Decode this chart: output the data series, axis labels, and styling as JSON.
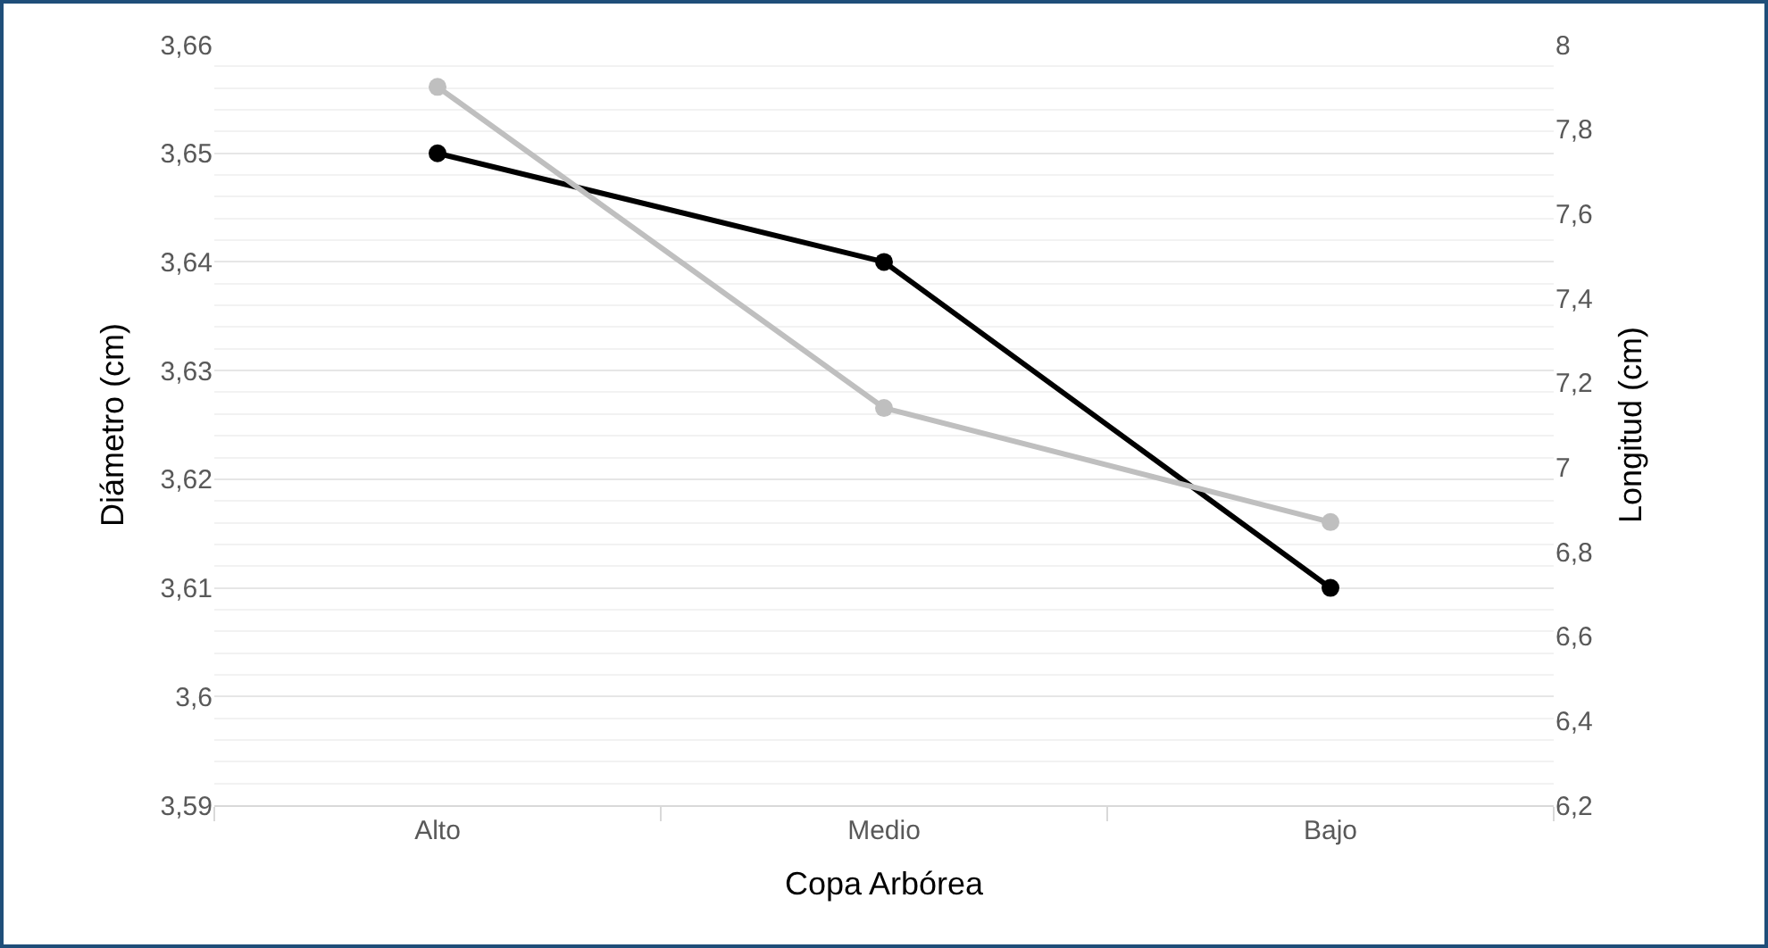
{
  "chart_data": {
    "type": "line",
    "xlabel": "Copa Arbórea",
    "ylabel": "Diámetro (cm)",
    "y2label": "Longitud (cm)",
    "categories": [
      "Alto",
      "Medio",
      "Bajo"
    ],
    "series": [
      {
        "color": "#000000",
        "values": [
          3.65,
          3.64,
          3.61
        ]
      },
      {
        "color": "#bfbfbf",
        "values": [
          7.9,
          7.14,
          6.87
        ],
        "axis": "y2"
      }
    ],
    "ylim": [
      3.59,
      3.66
    ],
    "yticks": [
      {
        "value": 3.59,
        "label": "3,59"
      },
      {
        "value": 3.6,
        "label": "3,6"
      },
      {
        "value": 3.61,
        "label": "3,61"
      },
      {
        "value": 3.62,
        "label": "3,62"
      },
      {
        "value": 3.63,
        "label": "3,63"
      },
      {
        "value": 3.64,
        "label": "3,64"
      },
      {
        "value": 3.65,
        "label": "3,65"
      },
      {
        "value": 3.66,
        "label": "3,66"
      }
    ],
    "y2lim": [
      6.2,
      8
    ],
    "y2ticks": [
      {
        "value": 6.2,
        "label": "6,2"
      },
      {
        "value": 6.4,
        "label": "6,4"
      },
      {
        "value": 6.6,
        "label": "6,6"
      },
      {
        "value": 6.8,
        "label": "6,8"
      },
      7,
      {
        "value": 7.2,
        "label": "7,2"
      },
      {
        "value": 7.4,
        "label": "7,4"
      },
      {
        "value": 7.6,
        "label": "7,6"
      },
      {
        "value": 7.8,
        "label": "7,8"
      },
      8
    ],
    "grid": "y",
    "marker": "circle",
    "line_style": "solid"
  }
}
